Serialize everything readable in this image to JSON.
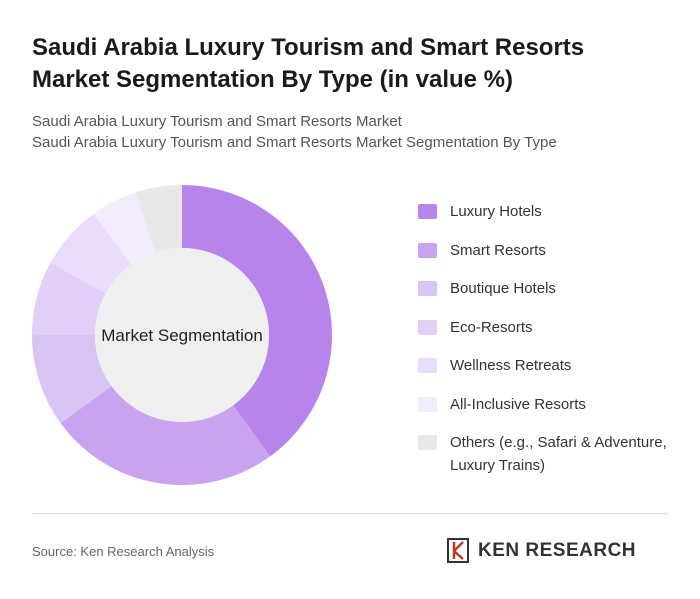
{
  "chart_data": {
    "type": "donut",
    "title": "Saudi Arabia Luxury Tourism and Smart Resorts Market Segmentation By Type (in value %)",
    "subtitle": [
      "Saudi Arabia Luxury Tourism and Smart Resorts Market",
      "Saudi Arabia Luxury Tourism and Smart Resorts Market Segmentation By Type"
    ],
    "center_label": "Market Segmentation",
    "categories": [
      "Luxury Hotels",
      "Smart Resorts",
      "Boutique Hotels",
      "Eco-Resorts",
      "Wellness Retreats",
      "All-Inclusive Resorts",
      "Others (e.g., Safari & Adventure, Luxury Trains)"
    ],
    "values": [
      40,
      25,
      10,
      8,
      7,
      5,
      5
    ],
    "colors": [
      "#b784eb",
      "#c9a3f0",
      "#dac3f5",
      "#e2cff7",
      "#eadcfa",
      "#f3ecfc",
      "#e8e8e8"
    ],
    "source": "Source: Ken Research Analysis",
    "brand": "KEN RESEARCH"
  }
}
